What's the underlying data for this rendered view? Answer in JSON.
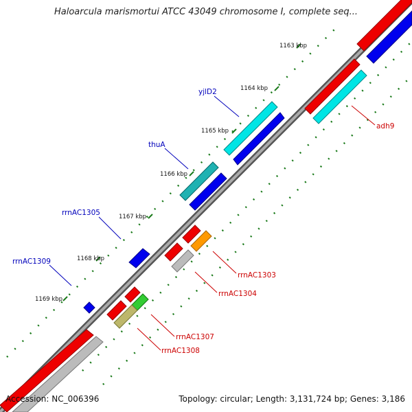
{
  "title": "Haloarcula marismortui ATCC 43049 chromosome I, complete seq...",
  "footer": {
    "accession": "Accession: NC_006396",
    "summary": "Topology: circular; Length: 3,131,724 bp; Genes: 3,186"
  },
  "ticks": [
    {
      "label": "1163 kbp"
    },
    {
      "label": "1164 kbp"
    },
    {
      "label": "1165 kbp"
    },
    {
      "label": "1166 kbp"
    },
    {
      "label": "1167 kbp"
    },
    {
      "label": "1168 kbp"
    },
    {
      "label": "1169 kbp"
    }
  ],
  "gene_labels": [
    {
      "name": "yjlD2",
      "color": "#0000bb"
    },
    {
      "name": "thuA",
      "color": "#0000bb"
    },
    {
      "name": "rrnAC1305",
      "color": "#0000bb"
    },
    {
      "name": "rrnAC1309",
      "color": "#0000bb"
    },
    {
      "name": "adh9",
      "color": "#cc0000"
    },
    {
      "name": "rrnAC1303",
      "color": "#cc0000"
    },
    {
      "name": "rrnAC1304",
      "color": "#cc0000"
    },
    {
      "name": "rrnAC1307",
      "color": "#cc0000"
    },
    {
      "name": "rrnAC1308",
      "color": "#cc0000"
    }
  ],
  "colors": {
    "backbone": "#777777",
    "tick_dots": "#1a7a1a",
    "forward_cds": "#0000ee",
    "reverse_cds": "#ee0000",
    "cyan_feature": "#00e5e5",
    "gray_feature": "#bbbbbb",
    "orange_feature": "#ff9900",
    "green_feature": "#33cc33",
    "olive_feature": "#bdb76b"
  }
}
